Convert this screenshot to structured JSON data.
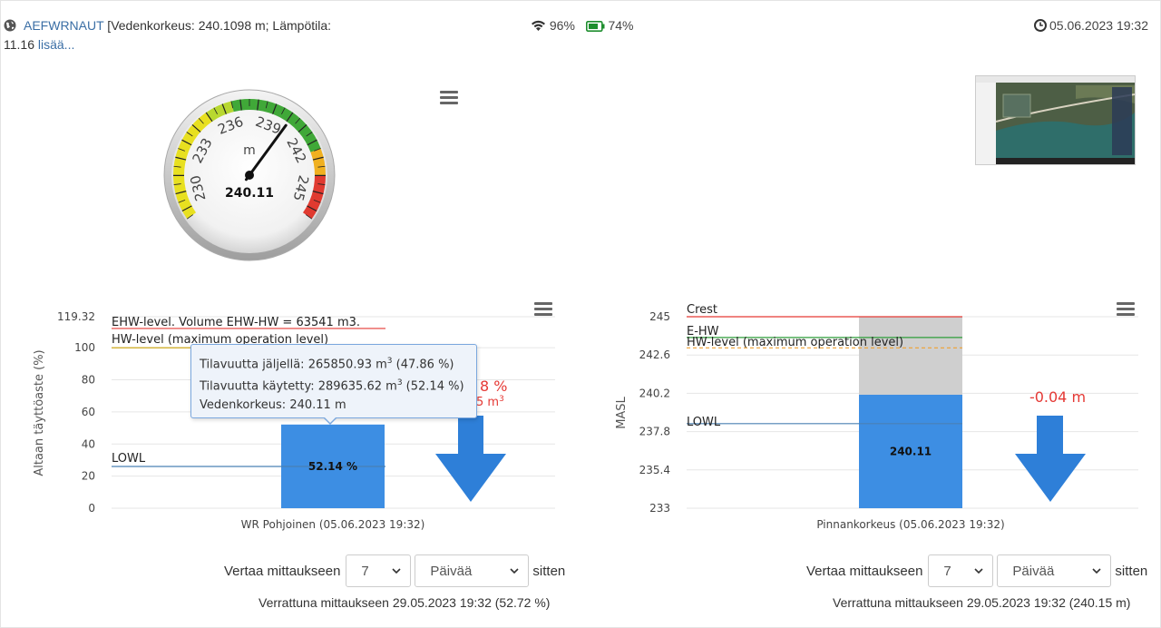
{
  "header": {
    "station_link": "AEFWRNAUT",
    "details_line1": " [Vedenkorkeus: 240.1098 m; Lämpötila:",
    "details_line2": "11.16 ",
    "more_link": "lisää...",
    "wifi_signal": "96%",
    "battery": "74%",
    "timestamp": "05.06.2023 19:32"
  },
  "gauge": {
    "unit": "m",
    "value_label": "240.11",
    "value": 240.11,
    "min": 228.5,
    "max": 246.5,
    "tick_labels": [
      "230",
      "233",
      "236",
      "239",
      "242",
      "245"
    ]
  },
  "left_chart": {
    "ylabel": "Altaan täyttöaste (%)",
    "y_ticks": [
      "0",
      "20",
      "40",
      "60",
      "80",
      "100",
      "119.32"
    ],
    "xlabel": "WR Pohjoinen (05.06.2023 19:32)",
    "bar_label": "52.14 %",
    "ehw_label": "EHW-level. Volume EHW-HW = 63541 m3.",
    "hw_label": "HW-level (maximum operation level)",
    "lowl_label": "LOWL",
    "change_pct": "8 %",
    "change_vol": "5 m",
    "change_vol_sup": "3",
    "tooltip": {
      "line1": "Tilavuutta jäljellä: 265850.93 m",
      "line1_tail": " (47.86 %)",
      "line2": "Tilavuutta käytetty: 289635.62 m",
      "line2_tail": " (52.14 %)",
      "line3": "Vedenkorkeus: 240.11 m",
      "sup": "3"
    }
  },
  "right_chart": {
    "ylabel": "MASL",
    "y_ticks": [
      "233",
      "235.4",
      "237.8",
      "240.2",
      "242.6",
      "245"
    ],
    "xlabel": "Pinnankorkeus (05.06.2023 19:32)",
    "bar_label": "240.11",
    "crest_label": "Crest",
    "ehw_label": "E-HW",
    "hw_label": "HW-level (maximum operation level)",
    "lowl_label": "LOWL",
    "change_label": "-0.04 m"
  },
  "chart_data": [
    {
      "type": "bar",
      "categories": [
        "WR Pohjoinen (05.06.2023 19:32)"
      ],
      "values": [
        52.14
      ],
      "ylabel": "Altaan täyttöaste (%)",
      "ylim": [
        0,
        119.32
      ],
      "reference_lines": [
        {
          "name": "EHW-level. Volume EHW-HW = 63541 m3.",
          "y": 112,
          "color": "#e53935"
        },
        {
          "name": "HW-level (maximum operation level)",
          "y": 100,
          "color": "#c8a000"
        },
        {
          "name": "LOWL",
          "y": 26,
          "color": "#4a80b4"
        }
      ]
    },
    {
      "type": "bar",
      "categories": [
        "Pinnankorkeus (05.06.2023 19:32)"
      ],
      "values": [
        240.11
      ],
      "ylabel": "MASL",
      "ylim": [
        233,
        245
      ],
      "reference_lines": [
        {
          "name": "Crest",
          "y": 245,
          "color": "#e53935"
        },
        {
          "name": "E-HW",
          "y": 243.7,
          "color": "#2e9e3a"
        },
        {
          "name": "HW-level (maximum operation level)",
          "y": 243.05,
          "color": "#f0a030"
        },
        {
          "name": "LOWL",
          "y": 238.3,
          "color": "#4a80b4"
        }
      ]
    }
  ],
  "compare_left": {
    "label": "Vertaa mittaukseen",
    "amount": "7",
    "unit": "Päivää",
    "suffix": "sitten",
    "result": "Verrattuna mittaukseen 29.05.2023 19:32 (52.72 %)"
  },
  "compare_right": {
    "label": "Vertaa mittaukseen",
    "amount": "7",
    "unit": "Päivää",
    "suffix": "sitten",
    "result": "Verrattuna mittaukseen 29.05.2023 19:32 (240.15 m)"
  },
  "colors": {
    "bar_blue": "#3d8ee3",
    "arrow_blue": "#2e7fd8",
    "remaining_gray": "#cfcfcf",
    "change_red": "#e53935"
  }
}
